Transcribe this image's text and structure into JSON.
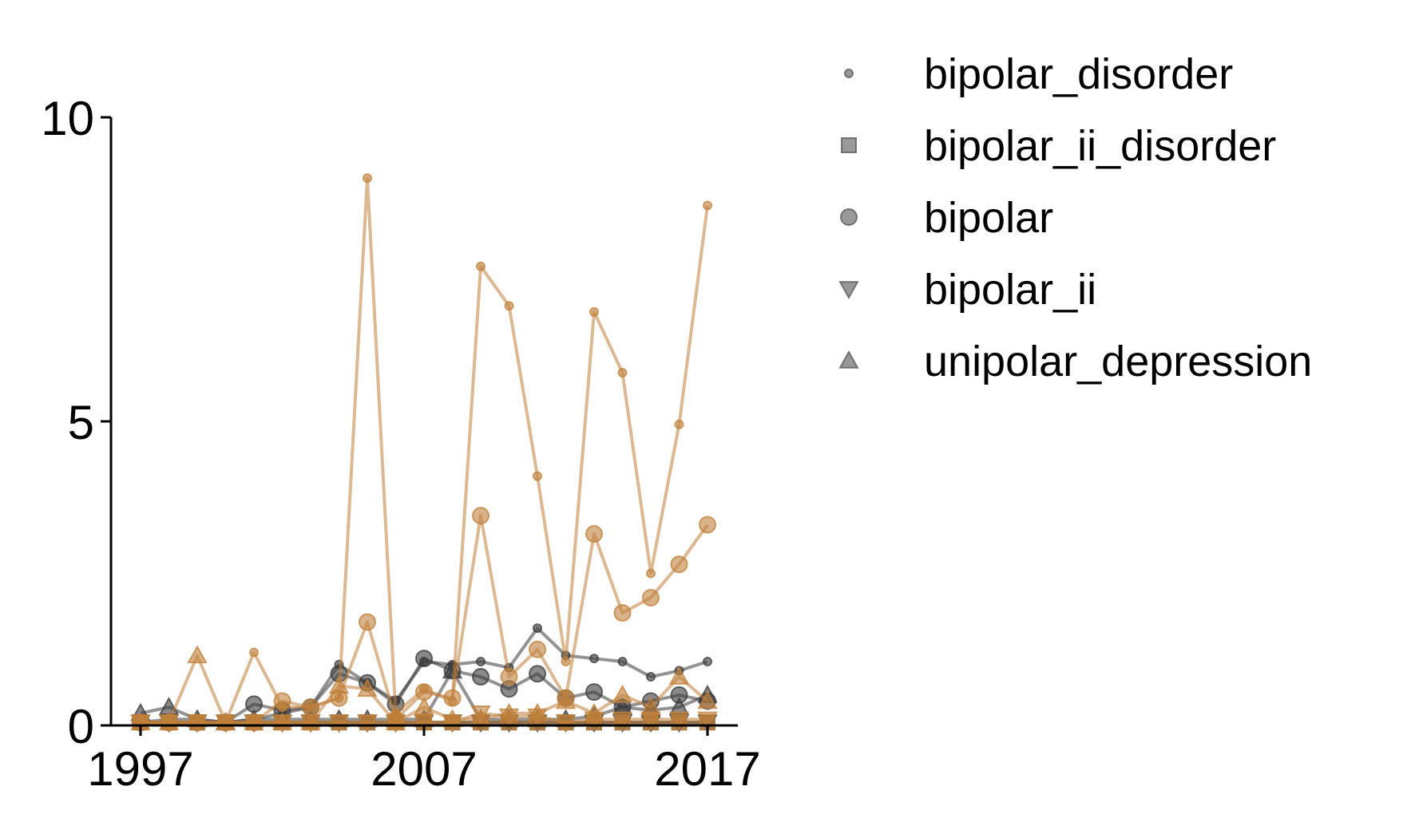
{
  "chart_data": {
    "type": "line",
    "title": "",
    "xlabel": "",
    "ylabel": "",
    "xlim": [
      1997,
      2017
    ],
    "ylim": [
      0,
      10
    ],
    "xticks": [
      1997,
      2007,
      2017
    ],
    "xtick_labels": [
      "1997",
      "2007",
      "2017"
    ],
    "yticks": [
      0,
      5,
      10
    ],
    "ytick_labels": [
      "0",
      "5",
      "10"
    ],
    "grid": false,
    "legend_position": "top-right outside",
    "x": [
      1997,
      1998,
      1999,
      2000,
      2001,
      2002,
      2003,
      2004,
      2005,
      2006,
      2007,
      2008,
      2009,
      2010,
      2011,
      2012,
      2013,
      2014,
      2015,
      2016,
      2017
    ],
    "legend": [
      {
        "name": "bipolar_disorder",
        "marker": "small-circle"
      },
      {
        "name": "bipolar_ii_disorder",
        "marker": "square"
      },
      {
        "name": "bipolar",
        "marker": "circle"
      },
      {
        "name": "bipolar_ii",
        "marker": "triangle-down"
      },
      {
        "name": "unipolar_depression",
        "marker": "triangle-up"
      }
    ],
    "groups": [
      {
        "color": "#3a3a3a",
        "series": [
          {
            "name": "bipolar_disorder",
            "marker": "small-circle",
            "values": [
              0.05,
              0.1,
              0.1,
              0.05,
              0.1,
              0.2,
              0.3,
              1.0,
              0.7,
              0.4,
              1.05,
              1.0,
              1.05,
              0.95,
              1.6,
              1.15,
              1.1,
              1.05,
              0.8,
              0.9,
              1.05
            ]
          },
          {
            "name": "bipolar_ii_disorder",
            "marker": "square",
            "values": [
              0.05,
              0.05,
              0.05,
              0.05,
              0.05,
              0.05,
              0.05,
              0.05,
              0.05,
              0.05,
              0.05,
              0.05,
              0.05,
              0.05,
              0.05,
              0.05,
              0.05,
              0.05,
              0.05,
              0.05,
              0.05
            ]
          },
          {
            "name": "bipolar",
            "marker": "circle",
            "values": [
              0.05,
              0.05,
              0.05,
              0.05,
              0.35,
              0.25,
              0.3,
              0.85,
              0.7,
              0.35,
              1.1,
              0.9,
              0.8,
              0.6,
              0.85,
              0.45,
              0.55,
              0.3,
              0.4,
              0.5,
              0.4
            ]
          },
          {
            "name": "bipolar_ii",
            "marker": "triangle-down",
            "values": [
              0.05,
              0.05,
              0.05,
              0.05,
              0.05,
              0.05,
              0.05,
              0.05,
              0.05,
              0.05,
              0.05,
              0.05,
              0.05,
              0.05,
              0.05,
              0.05,
              0.05,
              0.05,
              0.05,
              0.05,
              0.05
            ]
          },
          {
            "name": "unipolar_depression",
            "marker": "triangle-up",
            "values": [
              0.2,
              0.3,
              0.1,
              0.05,
              0.1,
              0.1,
              0.1,
              0.1,
              0.1,
              0.1,
              0.1,
              0.9,
              0.1,
              0.1,
              0.1,
              0.1,
              0.15,
              0.3,
              0.25,
              0.3,
              0.5
            ]
          }
        ]
      },
      {
        "color": "#c0803a",
        "series": [
          {
            "name": "bipolar_disorder",
            "marker": "small-circle",
            "values": [
              0.05,
              0.05,
              0.05,
              0.05,
              1.2,
              0.3,
              0.3,
              0.45,
              9.0,
              0.2,
              0.6,
              0.4,
              7.55,
              6.9,
              4.1,
              1.05,
              6.8,
              5.8,
              2.5,
              4.95,
              8.55
            ]
          },
          {
            "name": "bipolar_ii_disorder",
            "marker": "square",
            "values": [
              0.05,
              0.05,
              0.05,
              0.05,
              0.05,
              0.05,
              0.05,
              0.05,
              0.05,
              0.05,
              0.05,
              0.05,
              0.05,
              0.05,
              0.05,
              0.05,
              0.05,
              0.05,
              0.05,
              0.05,
              0.05
            ]
          },
          {
            "name": "bipolar",
            "marker": "circle",
            "values": [
              0.05,
              0.05,
              0.05,
              0.05,
              0.05,
              0.4,
              0.3,
              0.45,
              1.7,
              0.1,
              0.55,
              0.45,
              3.45,
              0.8,
              1.25,
              0.45,
              3.15,
              1.85,
              2.1,
              2.65,
              3.3
            ]
          },
          {
            "name": "bipolar_ii",
            "marker": "triangle-down",
            "values": [
              0.05,
              0.05,
              0.05,
              0.05,
              0.05,
              0.05,
              0.05,
              0.05,
              0.05,
              0.05,
              0.05,
              0.05,
              0.2,
              0.15,
              0.15,
              0.05,
              0.1,
              0.1,
              0.1,
              0.1,
              0.1
            ]
          },
          {
            "name": "unipolar_depression",
            "marker": "triangle-up",
            "values": [
              0.05,
              0.05,
              1.15,
              0.05,
              0.05,
              0.05,
              0.05,
              0.65,
              0.6,
              0.05,
              0.3,
              0.1,
              0.1,
              0.2,
              0.2,
              0.4,
              0.2,
              0.5,
              0.3,
              0.8,
              0.4
            ]
          }
        ]
      }
    ]
  }
}
